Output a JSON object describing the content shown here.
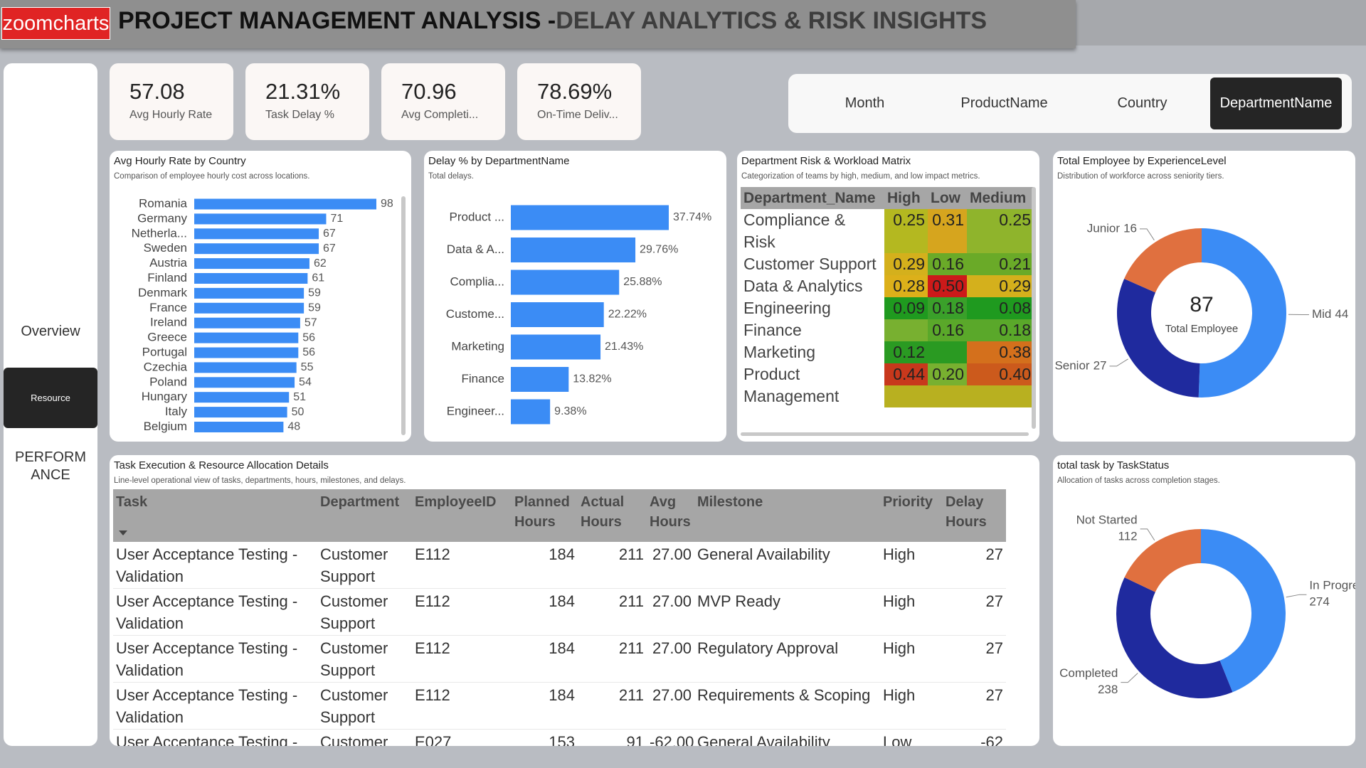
{
  "header": {
    "logo": "zoomcharts",
    "title": "PROJECT MANAGEMENT ANALYSIS -",
    "title_accent": "DELAY ANALYTICS & RISK INSIGHTS"
  },
  "nav": [
    "Overview",
    "Resource",
    "PERFORMANCE"
  ],
  "nav_active": 1,
  "kpis": [
    {
      "value": 57.08,
      "label": "Avg Hourly Rate"
    },
    {
      "value": 21.31,
      "value_label": "21.31%",
      "label": "Task Delay %"
    },
    {
      "value": 70.96,
      "label": "Avg Completi..."
    },
    {
      "value": 78.69,
      "value_label": "78.69%",
      "label": "On-Time Deliv..."
    }
  ],
  "slicer": {
    "options": [
      "Month",
      "ProductName",
      "Country",
      "DepartmentName"
    ],
    "selected": 3
  },
  "chart_data": [
    {
      "type": "bar",
      "orientation": "horizontal",
      "title": "Avg Hourly Rate by Country",
      "subtitle": "Comparison of employee hourly cost across locations.",
      "color": "#3b8cf5",
      "categories": [
        "Romania",
        "Germany",
        "Netherla...",
        "Sweden",
        "Austria",
        "Finland",
        "Denmark",
        "France",
        "Ireland",
        "Greece",
        "Portugal",
        "Czechia",
        "Poland",
        "Hungary",
        "Italy",
        "Belgium"
      ],
      "values": [
        98,
        71,
        67,
        67,
        62,
        61,
        59,
        59,
        57,
        56,
        56,
        55,
        54,
        51,
        50,
        48
      ]
    },
    {
      "type": "bar",
      "orientation": "horizontal",
      "title": "Delay % by DepartmentName",
      "subtitle": "Total delays.",
      "color": "#3b8cf5",
      "categories": [
        "Product ...",
        "Data & A...",
        "Complia...",
        "Custome...",
        "Marketing",
        "Finance",
        "Engineer..."
      ],
      "values": [
        37.74,
        29.76,
        25.88,
        22.22,
        21.43,
        13.82,
        9.38
      ],
      "value_labels": [
        "37.74%",
        "29.76%",
        "25.88%",
        "22.22%",
        "21.43%",
        "13.82%",
        "9.38%"
      ]
    },
    {
      "type": "donut",
      "title": "Total Employee by ExperienceLevel",
      "subtitle": "Distribution of workforce across seniority tiers.",
      "categories": [
        "Mid",
        "Senior",
        "Junior"
      ],
      "values": [
        44,
        27,
        16
      ],
      "colors": [
        "#3b8cf5",
        "#1f2a9e",
        "#e0703f"
      ],
      "center_value": 87,
      "center_label": "Total Employee"
    },
    {
      "type": "donut",
      "title": "total task by TaskStatus",
      "subtitle": "Allocation of tasks across completion stages.",
      "categories": [
        "In Progress",
        "Completed",
        "Not Started"
      ],
      "values": [
        274,
        238,
        112
      ],
      "colors": [
        "#3b8cf5",
        "#1f2a9e",
        "#e0703f"
      ]
    }
  ],
  "matrix": {
    "title": "Department Risk & Workload Matrix",
    "subtitle": "Categorization of teams by high, medium, and low impact metrics.",
    "columns": [
      "Department_Name",
      "High",
      "Low",
      "Medium"
    ],
    "rows": [
      {
        "name": "Compliance & Risk",
        "cells": [
          "0.25",
          "0.31",
          "0.25"
        ],
        "colors": [
          "#b4b820",
          "#d6a51e",
          "#8fb42c"
        ]
      },
      {
        "name": "Customer Support",
        "cells": [
          "0.29",
          "0.16",
          "0.21"
        ],
        "colors": [
          "#d4b01c",
          "#6aaa28",
          "#6aaa28"
        ]
      },
      {
        "name": "Data & Analytics",
        "cells": [
          "0.28",
          "0.50",
          "0.29"
        ],
        "colors": [
          "#dcb01a",
          "#cc1a1a",
          "#d4b01c"
        ]
      },
      {
        "name": "Engineering",
        "cells": [
          "0.09",
          "0.18",
          "0.08"
        ],
        "colors": [
          "#1f9a1f",
          "#3aa02a",
          "#1f9a1f"
        ]
      },
      {
        "name": "Finance",
        "cells": [
          null,
          "0.16",
          "0.18"
        ],
        "colors": [
          "#78b030",
          "#5aa82a",
          "#5aa82a"
        ]
      },
      {
        "name": "Marketing",
        "cells": [
          "0.12",
          null,
          "0.38"
        ],
        "colors": [
          "#2a9a22",
          "#2a9a22",
          "#d4701c"
        ]
      },
      {
        "name": "Product",
        "cells": [
          "0.44",
          "0.20",
          "0.40"
        ],
        "colors": [
          "#c8381c",
          "#78b030",
          "#cc5a1c"
        ]
      },
      {
        "name": "Management",
        "cells": [
          null,
          null,
          null
        ],
        "colors": [
          "#b8b020",
          "#b8b020",
          "#b8b020"
        ]
      }
    ]
  },
  "table": {
    "title": "Task Execution & Resource Allocation Details",
    "subtitle": "Line-level operational view of tasks, departments, hours, milestones, and delays.",
    "columns": [
      "Task",
      "Department",
      "EmployeeID",
      "Planned Hours",
      "Actual Hours",
      "Avg Hours",
      "Milestone",
      "Priority",
      "Delay Hours"
    ],
    "rows": [
      [
        "User Acceptance Testing - Validation",
        "Customer Support",
        "E112",
        "184",
        "211",
        "27.00",
        "General Availability",
        "High",
        "27"
      ],
      [
        "User Acceptance Testing - Validation",
        "Customer Support",
        "E112",
        "184",
        "211",
        "27.00",
        "MVP Ready",
        "High",
        "27"
      ],
      [
        "User Acceptance Testing - Validation",
        "Customer Support",
        "E112",
        "184",
        "211",
        "27.00",
        "Regulatory Approval",
        "High",
        "27"
      ],
      [
        "User Acceptance Testing - Validation",
        "Customer Support",
        "E112",
        "184",
        "211",
        "27.00",
        "Requirements & Scoping",
        "High",
        "27"
      ],
      [
        "User Acceptance Testing - Validation",
        "Customer Support",
        "E027",
        "153",
        "91",
        "-62.00",
        "General Availability",
        "Low",
        "-62"
      ]
    ]
  }
}
